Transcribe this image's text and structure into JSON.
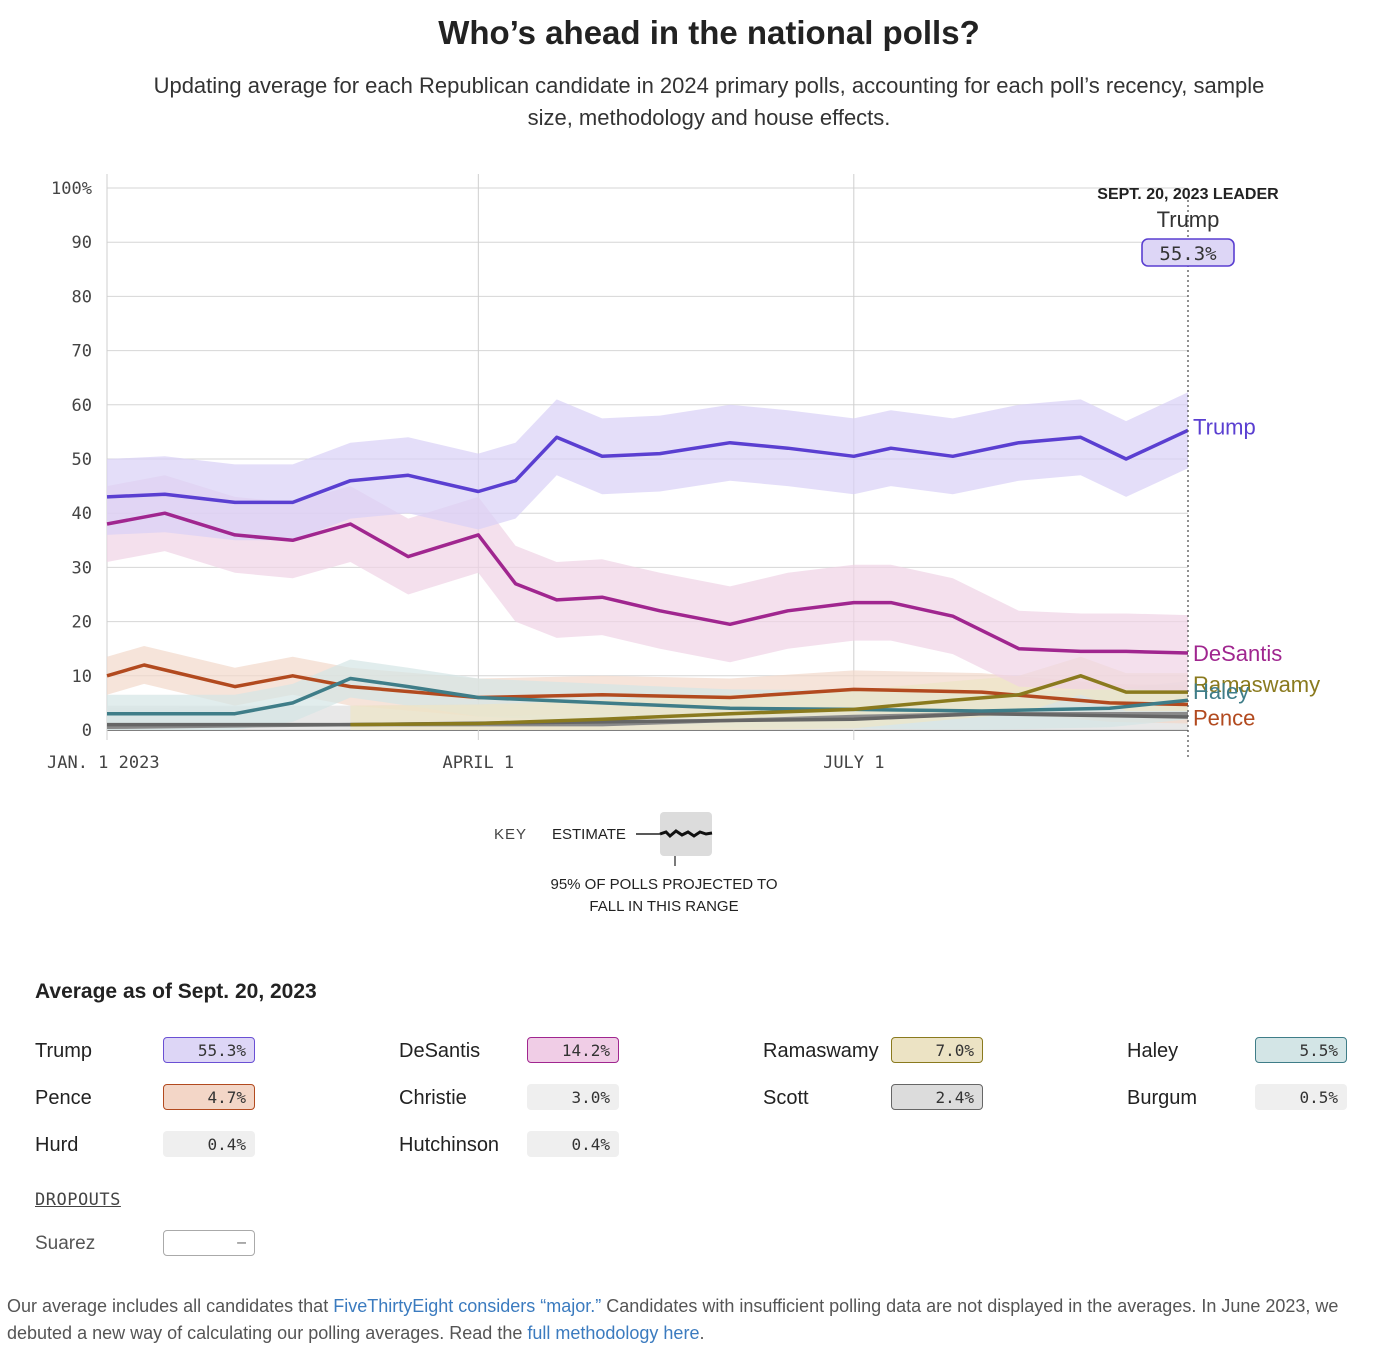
{
  "header": {
    "title": "Who’s ahead in the national polls?",
    "subtitle": "Updating average for each Republican candidate in 2024 primary polls, accounting for each poll’s recency, sample size, methodology and house effects."
  },
  "chart_data": {
    "type": "line",
    "x_range": [
      "2023-01-01",
      "2023-09-20"
    ],
    "ylim": [
      0,
      100
    ],
    "y_ticks": [
      "100%",
      "90",
      "80",
      "70",
      "60",
      "50",
      "40",
      "30",
      "20",
      "10",
      "0"
    ],
    "x_ticks": [
      {
        "label": "JAN. 1 2023",
        "date": "2023-01-01"
      },
      {
        "label": "APRIL 1",
        "date": "2023-04-01"
      },
      {
        "label": "JULY 1",
        "date": "2023-07-01"
      }
    ],
    "leader": {
      "heading": "SEPT. 20, 2023 LEADER",
      "name": "Trump",
      "value": "55.3%"
    },
    "series": [
      {
        "name": "Trump",
        "color": "#5a3fd1",
        "band_color": "#d9d0f7",
        "dates": [
          "2023-01-01",
          "2023-01-15",
          "2023-02-01",
          "2023-02-15",
          "2023-03-01",
          "2023-03-15",
          "2023-04-01",
          "2023-04-10",
          "2023-04-20",
          "2023-05-01",
          "2023-05-15",
          "2023-06-01",
          "2023-06-15",
          "2023-07-01",
          "2023-07-10",
          "2023-07-25",
          "2023-08-10",
          "2023-08-25",
          "2023-09-05",
          "2023-09-20"
        ],
        "values": [
          43,
          43.5,
          42,
          42,
          46,
          47,
          44,
          46,
          54,
          50.5,
          51,
          53,
          52,
          50.5,
          52,
          50.5,
          53,
          54,
          50,
          55.3
        ]
      },
      {
        "name": "DeSantis",
        "color": "#a0268f",
        "band_color": "#f0d3e6",
        "dates": [
          "2023-01-01",
          "2023-01-15",
          "2023-02-01",
          "2023-02-15",
          "2023-03-01",
          "2023-03-15",
          "2023-04-01",
          "2023-04-10",
          "2023-04-20",
          "2023-05-01",
          "2023-05-15",
          "2023-06-01",
          "2023-06-15",
          "2023-07-01",
          "2023-07-10",
          "2023-07-25",
          "2023-08-10",
          "2023-08-25",
          "2023-09-05",
          "2023-09-20"
        ],
        "values": [
          38,
          40,
          36,
          35,
          38,
          32,
          36,
          27,
          24,
          24.5,
          22,
          19.5,
          22,
          23.5,
          23.5,
          21,
          15,
          14.5,
          14.5,
          14.2
        ]
      },
      {
        "name": "Ramaswamy",
        "color": "#8a7a1e",
        "band_color": "#eee6c6",
        "dates": [
          "2023-03-01",
          "2023-04-01",
          "2023-05-01",
          "2023-06-01",
          "2023-07-01",
          "2023-07-25",
          "2023-08-10",
          "2023-08-25",
          "2023-09-05",
          "2023-09-20"
        ],
        "values": [
          1,
          1.2,
          2,
          3,
          3.8,
          5.5,
          6.5,
          10,
          7,
          7.0
        ]
      },
      {
        "name": "Haley",
        "color": "#3f7d88",
        "band_color": "#d4e5e6",
        "dates": [
          "2023-01-01",
          "2023-02-01",
          "2023-02-15",
          "2023-03-01",
          "2023-03-15",
          "2023-04-01",
          "2023-05-01",
          "2023-06-01",
          "2023-07-01",
          "2023-08-01",
          "2023-09-01",
          "2023-09-20"
        ],
        "values": [
          3,
          3,
          5,
          9.5,
          8,
          6,
          5,
          4,
          3.8,
          3.5,
          4,
          5.5
        ]
      },
      {
        "name": "Pence",
        "color": "#b24a1f",
        "band_color": "#f2d9cb",
        "dates": [
          "2023-01-01",
          "2023-01-10",
          "2023-02-01",
          "2023-02-15",
          "2023-03-01",
          "2023-04-01",
          "2023-05-01",
          "2023-06-01",
          "2023-07-01",
          "2023-08-01",
          "2023-09-01",
          "2023-09-20"
        ],
        "values": [
          10,
          12,
          8,
          10,
          8,
          6,
          6.5,
          6,
          7.5,
          7,
          5,
          4.7
        ]
      },
      {
        "name": "Scott",
        "color": "#666666",
        "band_color": "#e4e4e4",
        "dates": [
          "2023-01-01",
          "2023-03-01",
          "2023-05-01",
          "2023-07-01",
          "2023-08-01",
          "2023-09-20"
        ],
        "values": [
          1,
          1,
          1.5,
          2,
          3,
          2.4
        ]
      },
      {
        "name": "Christie",
        "color": "#8a8a8a",
        "band_color": "#ececec",
        "dates": [
          "2023-01-01",
          "2023-03-01",
          "2023-05-01",
          "2023-07-01",
          "2023-08-01",
          "2023-09-20"
        ],
        "values": [
          0.5,
          1,
          1,
          2.5,
          3,
          3.0
        ]
      }
    ],
    "end_labels": [
      {
        "name": "Trump",
        "value": 56,
        "color": "#5a3fd1"
      },
      {
        "name": "DeSantis",
        "value": 14.2,
        "color": "#a0268f"
      },
      {
        "name": "Ramaswamy",
        "value": 8.5,
        "color": "#8a7a1e"
      },
      {
        "name": "Haley",
        "value": 7.2,
        "color": "#3f7d88"
      },
      {
        "name": "Pence",
        "value": 2.3,
        "color": "#b24a1f"
      }
    ]
  },
  "key": {
    "label": "KEY",
    "estimate": "ESTIMATE",
    "range": "95% OF POLLS PROJECTED TO FALL IN THIS RANGE"
  },
  "averages": {
    "heading": "Average as of Sept. 20, 2023",
    "rows": [
      {
        "name": "Trump",
        "value": "55.3%",
        "color": "#ddd6f6",
        "border": "#6a50d4"
      },
      {
        "name": "DeSantis",
        "value": "14.2%",
        "color": "#f0cde6",
        "border": "#a0268f"
      },
      {
        "name": "Ramaswamy",
        "value": "7.0%",
        "color": "#ece3c4",
        "border": "#8a7a1e"
      },
      {
        "name": "Haley",
        "value": "5.5%",
        "color": "#d3e5e6",
        "border": "#3f7d88"
      },
      {
        "name": "Pence",
        "value": "4.7%",
        "color": "#f3d6c7",
        "border": "#b24a1f"
      },
      {
        "name": "Christie",
        "value": "3.0%",
        "color": "#efefef",
        "border": ""
      },
      {
        "name": "Scott",
        "value": "2.4%",
        "color": "#dcdcdc",
        "border": "#666666"
      },
      {
        "name": "Burgum",
        "value": "0.5%",
        "color": "#efefef",
        "border": ""
      },
      {
        "name": "Hurd",
        "value": "0.4%",
        "color": "#efefef",
        "border": ""
      },
      {
        "name": "Hutchinson",
        "value": "0.4%",
        "color": "#efefef",
        "border": ""
      }
    ],
    "dropouts_title": "DROPOUTS",
    "dropouts": [
      {
        "name": "Suarez",
        "value": "–"
      }
    ]
  },
  "footnote": {
    "t1": "Our average includes all candidates that ",
    "link1": "FiveThirtyEight considers “major.”",
    "t2": " Candidates with insufficient polling data are not displayed in the averages. In June 2023, we debuted a new way of calculating our polling averages. Read the ",
    "link2": "full methodology here",
    "t3": "."
  }
}
